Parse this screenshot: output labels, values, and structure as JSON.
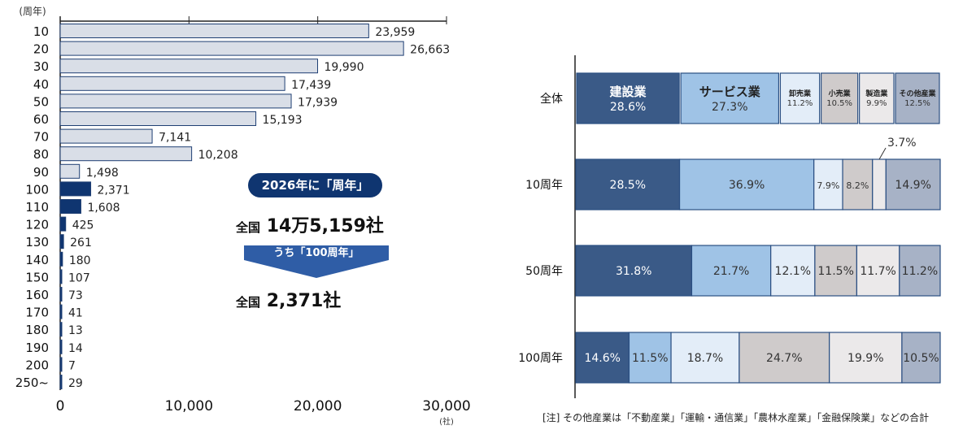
{
  "chart_data": [
    {
      "type": "bar",
      "orientation": "horizontal",
      "ylabel": "(周年)",
      "xlabel": "(社)",
      "categories": [
        "10",
        "20",
        "30",
        "40",
        "50",
        "60",
        "70",
        "80",
        "90",
        "100",
        "110",
        "120",
        "130",
        "140",
        "150",
        "160",
        "170",
        "180",
        "190",
        "200",
        "250~"
      ],
      "values": [
        23959,
        26663,
        19990,
        17439,
        17939,
        15193,
        7141,
        10208,
        1498,
        2371,
        1608,
        425,
        261,
        180,
        107,
        73,
        41,
        13,
        14,
        7,
        29
      ],
      "value_labels": [
        "23,959",
        "26,663",
        "19,990",
        "17,439",
        "17,939",
        "15,193",
        "7,141",
        "10,208",
        "1,498",
        "2,371",
        "1,608",
        "425",
        "261",
        "180",
        "107",
        "73",
        "41",
        "13",
        "14",
        "7",
        "29"
      ],
      "highlight_from_index": 9,
      "xlim": [
        0,
        30000
      ],
      "xticks": [
        "0",
        "10,000",
        "20,000",
        "30,000"
      ],
      "colors": {
        "normal": "#d9dee7",
        "highlight": "#0f3570",
        "border": "#1f3f73"
      }
    },
    {
      "type": "bar",
      "orientation": "horizontal",
      "stacked": true,
      "percent": true,
      "categories": [
        "全体",
        "10周年",
        "50周年",
        "100周年"
      ],
      "segment_colors": [
        "#3a5a87",
        "#9fc3e6",
        "#e3edf8",
        "#cfcbcb",
        "#ebe9ea",
        "#a7b2c6"
      ],
      "rows": [
        {
          "segments": [
            {
              "name": "建設業",
              "value": 28.6,
              "label": "28.6%"
            },
            {
              "name": "サービス業",
              "value": 27.3,
              "label": "27.3%"
            },
            {
              "name": "卸売業",
              "value": 11.2,
              "label": "11.2%"
            },
            {
              "name": "小売業",
              "value": 10.5,
              "label": "10.5%"
            },
            {
              "name": "製造業",
              "value": 9.9,
              "label": "9.9%"
            },
            {
              "name": "その他産業",
              "value": 12.5,
              "label": "12.5%"
            }
          ]
        },
        {
          "segments": [
            {
              "value": 28.5,
              "label": "28.5%"
            },
            {
              "value": 36.9,
              "label": "36.9%"
            },
            {
              "value": 7.9,
              "label": "7.9%"
            },
            {
              "value": 8.2,
              "label": "8.2%"
            },
            {
              "value": 3.7,
              "label": "3.7%"
            },
            {
              "value": 14.9,
              "label": "14.9%"
            }
          ]
        },
        {
          "segments": [
            {
              "value": 31.8,
              "label": "31.8%"
            },
            {
              "value": 21.7,
              "label": "21.7%"
            },
            {
              "value": 12.1,
              "label": "12.1%"
            },
            {
              "value": 11.5,
              "label": "11.5%"
            },
            {
              "value": 11.7,
              "label": "11.7%"
            },
            {
              "value": 11.2,
              "label": "11.2%"
            }
          ]
        },
        {
          "segments": [
            {
              "value": 14.6,
              "label": "14.6%"
            },
            {
              "value": 11.5,
              "label": "11.5%"
            },
            {
              "value": 18.7,
              "label": "18.7%"
            },
            {
              "value": 24.7,
              "label": "24.7%"
            },
            {
              "value": 19.9,
              "label": "19.9%"
            },
            {
              "value": 10.5,
              "label": "10.5%"
            }
          ]
        }
      ]
    }
  ],
  "callout": {
    "pill": "2026年に「周年」",
    "total1_prefix": "全国",
    "total1": "14万5,159社",
    "arrow_label": "うち「100周年」",
    "total2_prefix": "全国",
    "total2": "2,371社"
  },
  "note": "[注] その他産業は「不動産業」「運輸・通信業」「農林水産業」「金融保険業」などの合計"
}
